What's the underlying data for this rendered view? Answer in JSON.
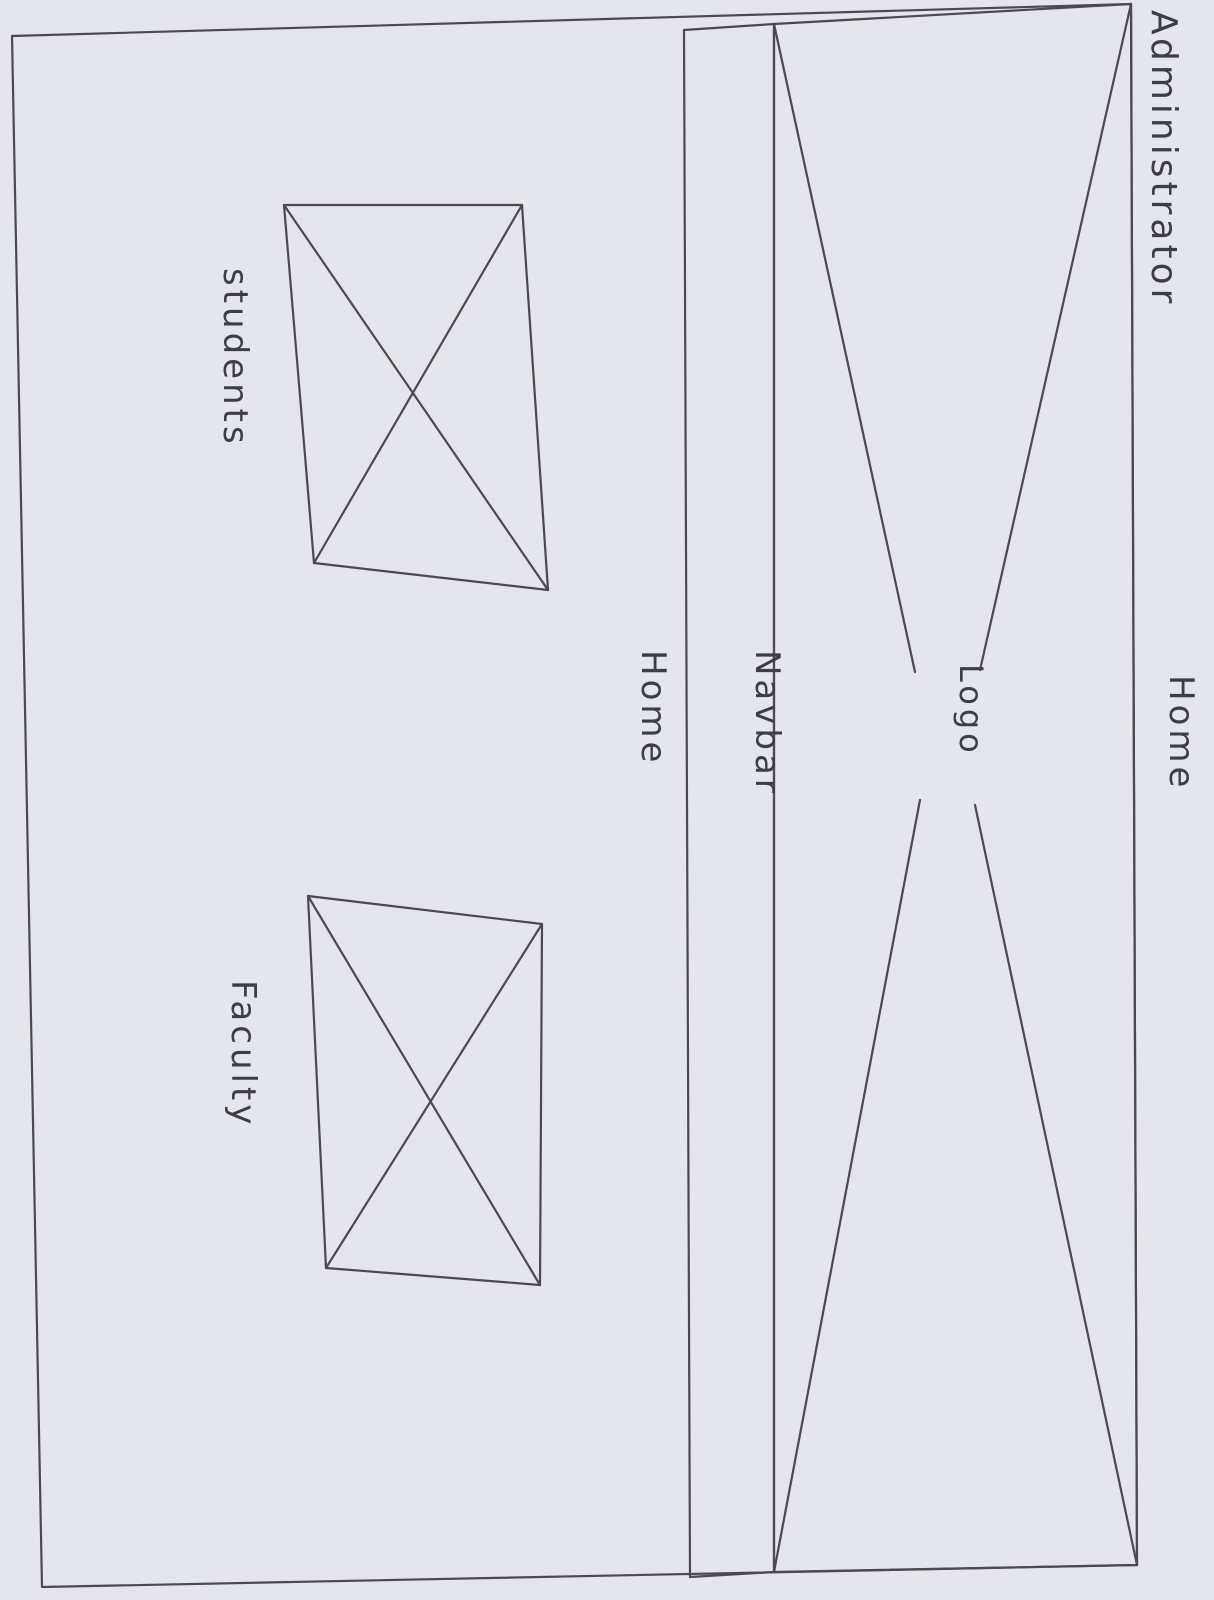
{
  "page": {
    "role_label": "Administrator",
    "page_label": "Home"
  },
  "header": {
    "logo_label": "Logo"
  },
  "navbar": {
    "label": "Navbar",
    "current_page": "Home"
  },
  "main": {
    "cards": [
      {
        "label": "students"
      },
      {
        "label": "Faculty"
      }
    ]
  },
  "colors": {
    "paper": "#e4e6ec",
    "pencil": "#4a4a50",
    "table": "#c9c2b8"
  }
}
